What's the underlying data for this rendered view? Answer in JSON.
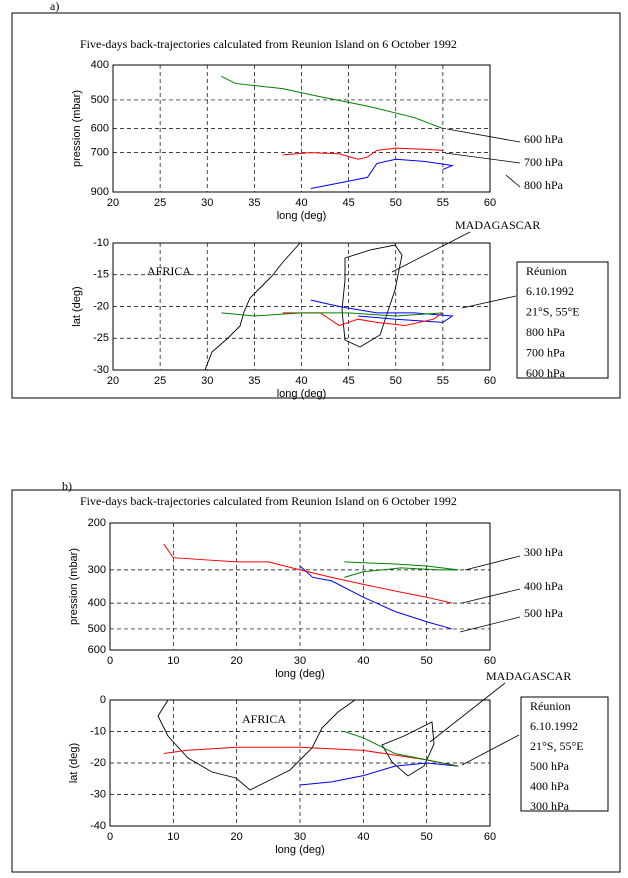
{
  "chart_data": [
    {
      "type": "line",
      "panel_label": "a)",
      "title": "Five-days back-trajectories calculated from Reunion Island on 6 October 1992",
      "xlabel": "long (deg)",
      "ylabel": "pression (mbar)",
      "xlim": [
        20,
        60
      ],
      "xticks": [
        20,
        25,
        30,
        35,
        40,
        45,
        50,
        55,
        60
      ],
      "ylim": [
        400,
        900
      ],
      "yticks": [
        400,
        500,
        600,
        700,
        900
      ],
      "y_scale": "log",
      "y_inverted": true,
      "grid": true,
      "series": [
        {
          "name": "800 hPa",
          "color": "#0000ff",
          "x": [
            41,
            44,
            47,
            48,
            50,
            53,
            56,
            55
          ],
          "values": [
            880,
            850,
            820,
            750,
            730,
            740,
            760,
            780
          ]
        },
        {
          "name": "700 hPa",
          "color": "#ff0000",
          "x": [
            38,
            41,
            44,
            46,
            47,
            48,
            50,
            53,
            55
          ],
          "values": [
            710,
            700,
            705,
            730,
            720,
            690,
            680,
            685,
            690
          ]
        },
        {
          "name": "600 hPa",
          "color": "#008000",
          "x": [
            31.5,
            33,
            38,
            42,
            47,
            52,
            55
          ],
          "values": [
            430,
            450,
            465,
            490,
            520,
            560,
            600
          ]
        }
      ]
    },
    {
      "type": "line",
      "xlabel": "long (deg)",
      "ylabel": "lat (deg)",
      "xlim": [
        20,
        60
      ],
      "xticks": [
        20,
        25,
        30,
        35,
        40,
        45,
        50,
        55,
        60
      ],
      "ylim": [
        -30,
        -10
      ],
      "yticks": [
        -10,
        -15,
        -20,
        -25,
        -30
      ],
      "grid": true,
      "annotations": [
        "MADAGASCAR",
        "AFRICA"
      ],
      "legend_title": [
        "Réunion",
        "6.10.1992",
        "21°S, 55°E"
      ],
      "series": [
        {
          "name": "800 hPa",
          "color": "#0000ff",
          "x": [
            41,
            44,
            48,
            52,
            56,
            55,
            50,
            46
          ],
          "values": [
            -19,
            -20,
            -21,
            -21,
            -21.5,
            -22.5,
            -22,
            -21.5
          ]
        },
        {
          "name": "700 hPa",
          "color": "#ff0000",
          "x": [
            38,
            42,
            44,
            46,
            48,
            51,
            54,
            55
          ],
          "values": [
            -21,
            -21,
            -23,
            -22,
            -22.5,
            -23,
            -22,
            -21
          ]
        },
        {
          "name": "600 hPa",
          "color": "#008000",
          "x": [
            31.5,
            35,
            40,
            45,
            50,
            55
          ],
          "values": [
            -21,
            -21.5,
            -21,
            -21,
            -21.5,
            -21
          ]
        }
      ]
    },
    {
      "type": "line",
      "panel_label": "b)",
      "title": "Five-days back-trajectories calculated from Reunion Island on 6 October 1992",
      "xlabel": "long (deg)",
      "ylabel": "pression (mbar)",
      "xlim": [
        0,
        60
      ],
      "xticks": [
        0,
        10,
        20,
        30,
        40,
        50,
        60
      ],
      "ylim": [
        200,
        600
      ],
      "yticks": [
        200,
        300,
        400,
        500,
        600
      ],
      "y_scale": "log",
      "y_inverted": true,
      "grid": true,
      "series": [
        {
          "name": "500 hPa",
          "color": "#0000ff",
          "x": [
            30,
            32,
            35,
            40,
            45,
            50,
            54
          ],
          "values": [
            290,
            320,
            330,
            380,
            430,
            470,
            500
          ]
        },
        {
          "name": "400 hPa",
          "color": "#ff0000",
          "x": [
            8.5,
            10,
            15,
            20,
            25,
            30,
            35,
            40,
            45,
            50,
            54
          ],
          "values": [
            240,
            270,
            275,
            280,
            280,
            300,
            320,
            340,
            360,
            380,
            400
          ]
        },
        {
          "name": "300 hPa",
          "color": "#008000",
          "x": [
            37,
            40,
            45,
            50,
            55,
            52,
            46,
            40,
            37
          ],
          "values": [
            280,
            282,
            285,
            290,
            300,
            300,
            295,
            305,
            320
          ]
        }
      ]
    },
    {
      "type": "line",
      "xlabel": "long (deg)",
      "ylabel": "lat (deg)",
      "xlim": [
        0,
        60
      ],
      "xticks": [
        0,
        10,
        20,
        30,
        40,
        50,
        60
      ],
      "ylim": [
        -40,
        0
      ],
      "yticks": [
        0,
        -10,
        -20,
        -30,
        -40
      ],
      "grid": true,
      "annotations": [
        "MADAGASCAR",
        "AFRICA"
      ],
      "legend_title": [
        "Réunion",
        "6.10.1992",
        "21°S, 55°E"
      ],
      "series": [
        {
          "name": "500 hPa",
          "color": "#0000ff",
          "x": [
            30,
            35,
            40,
            45,
            50,
            55
          ],
          "values": [
            -27,
            -26,
            -24,
            -21,
            -20,
            -21
          ]
        },
        {
          "name": "400 hPa",
          "color": "#ff0000",
          "x": [
            8.5,
            12,
            20,
            30,
            40,
            50,
            55
          ],
          "values": [
            -17,
            -16,
            -15,
            -15,
            -16,
            -19,
            -21
          ]
        },
        {
          "name": "300 hPa",
          "color": "#008000",
          "x": [
            37,
            40,
            45,
            50,
            55
          ],
          "values": [
            -10,
            -12,
            -17,
            -19,
            -21
          ]
        }
      ]
    }
  ]
}
